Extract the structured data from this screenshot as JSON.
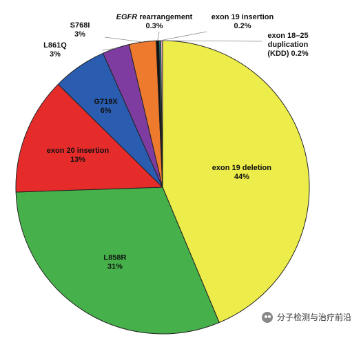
{
  "chart_data": {
    "type": "pie",
    "title": "",
    "slices": [
      {
        "label": "exon 19 deletion",
        "pct_text": "44%",
        "value": 44,
        "color": "#ECEC4A",
        "italic_prefix": ""
      },
      {
        "label": "L858R",
        "pct_text": "31%",
        "value": 31,
        "color": "#46B14A",
        "italic_prefix": ""
      },
      {
        "label": "exon 20 insertion",
        "pct_text": "13%",
        "value": 13,
        "color": "#E62B2B",
        "italic_prefix": ""
      },
      {
        "label": "G719X",
        "pct_text": "6%",
        "value": 6,
        "color": "#2A5CB0",
        "italic_prefix": ""
      },
      {
        "label": "L861Q",
        "pct_text": "3%",
        "value": 3,
        "color": "#7F3CA0",
        "italic_prefix": ""
      },
      {
        "label": "S768I",
        "pct_text": "3%",
        "value": 3,
        "color": "#EE7A2E",
        "italic_prefix": ""
      },
      {
        "label": "rearrangement",
        "pct_text": "0.3%",
        "value": 0.3,
        "color": "#111111",
        "italic_prefix": "EGFR"
      },
      {
        "label": "exon 19 insertion",
        "pct_text": "0.2%",
        "value": 0.2,
        "color": "#2A8A8A",
        "italic_prefix": ""
      },
      {
        "label": "exon 18–25 duplication (KDD)",
        "label_lines": [
          "exon 18–25",
          "duplication",
          "(KDD) 0.2%"
        ],
        "pct_text": "0.2%",
        "value": 0.2,
        "color": "#E8B0C8",
        "italic_prefix": ""
      }
    ]
  },
  "watermark": {
    "icon": "wechat-icon",
    "text": "分子检测与治疗前沿"
  }
}
